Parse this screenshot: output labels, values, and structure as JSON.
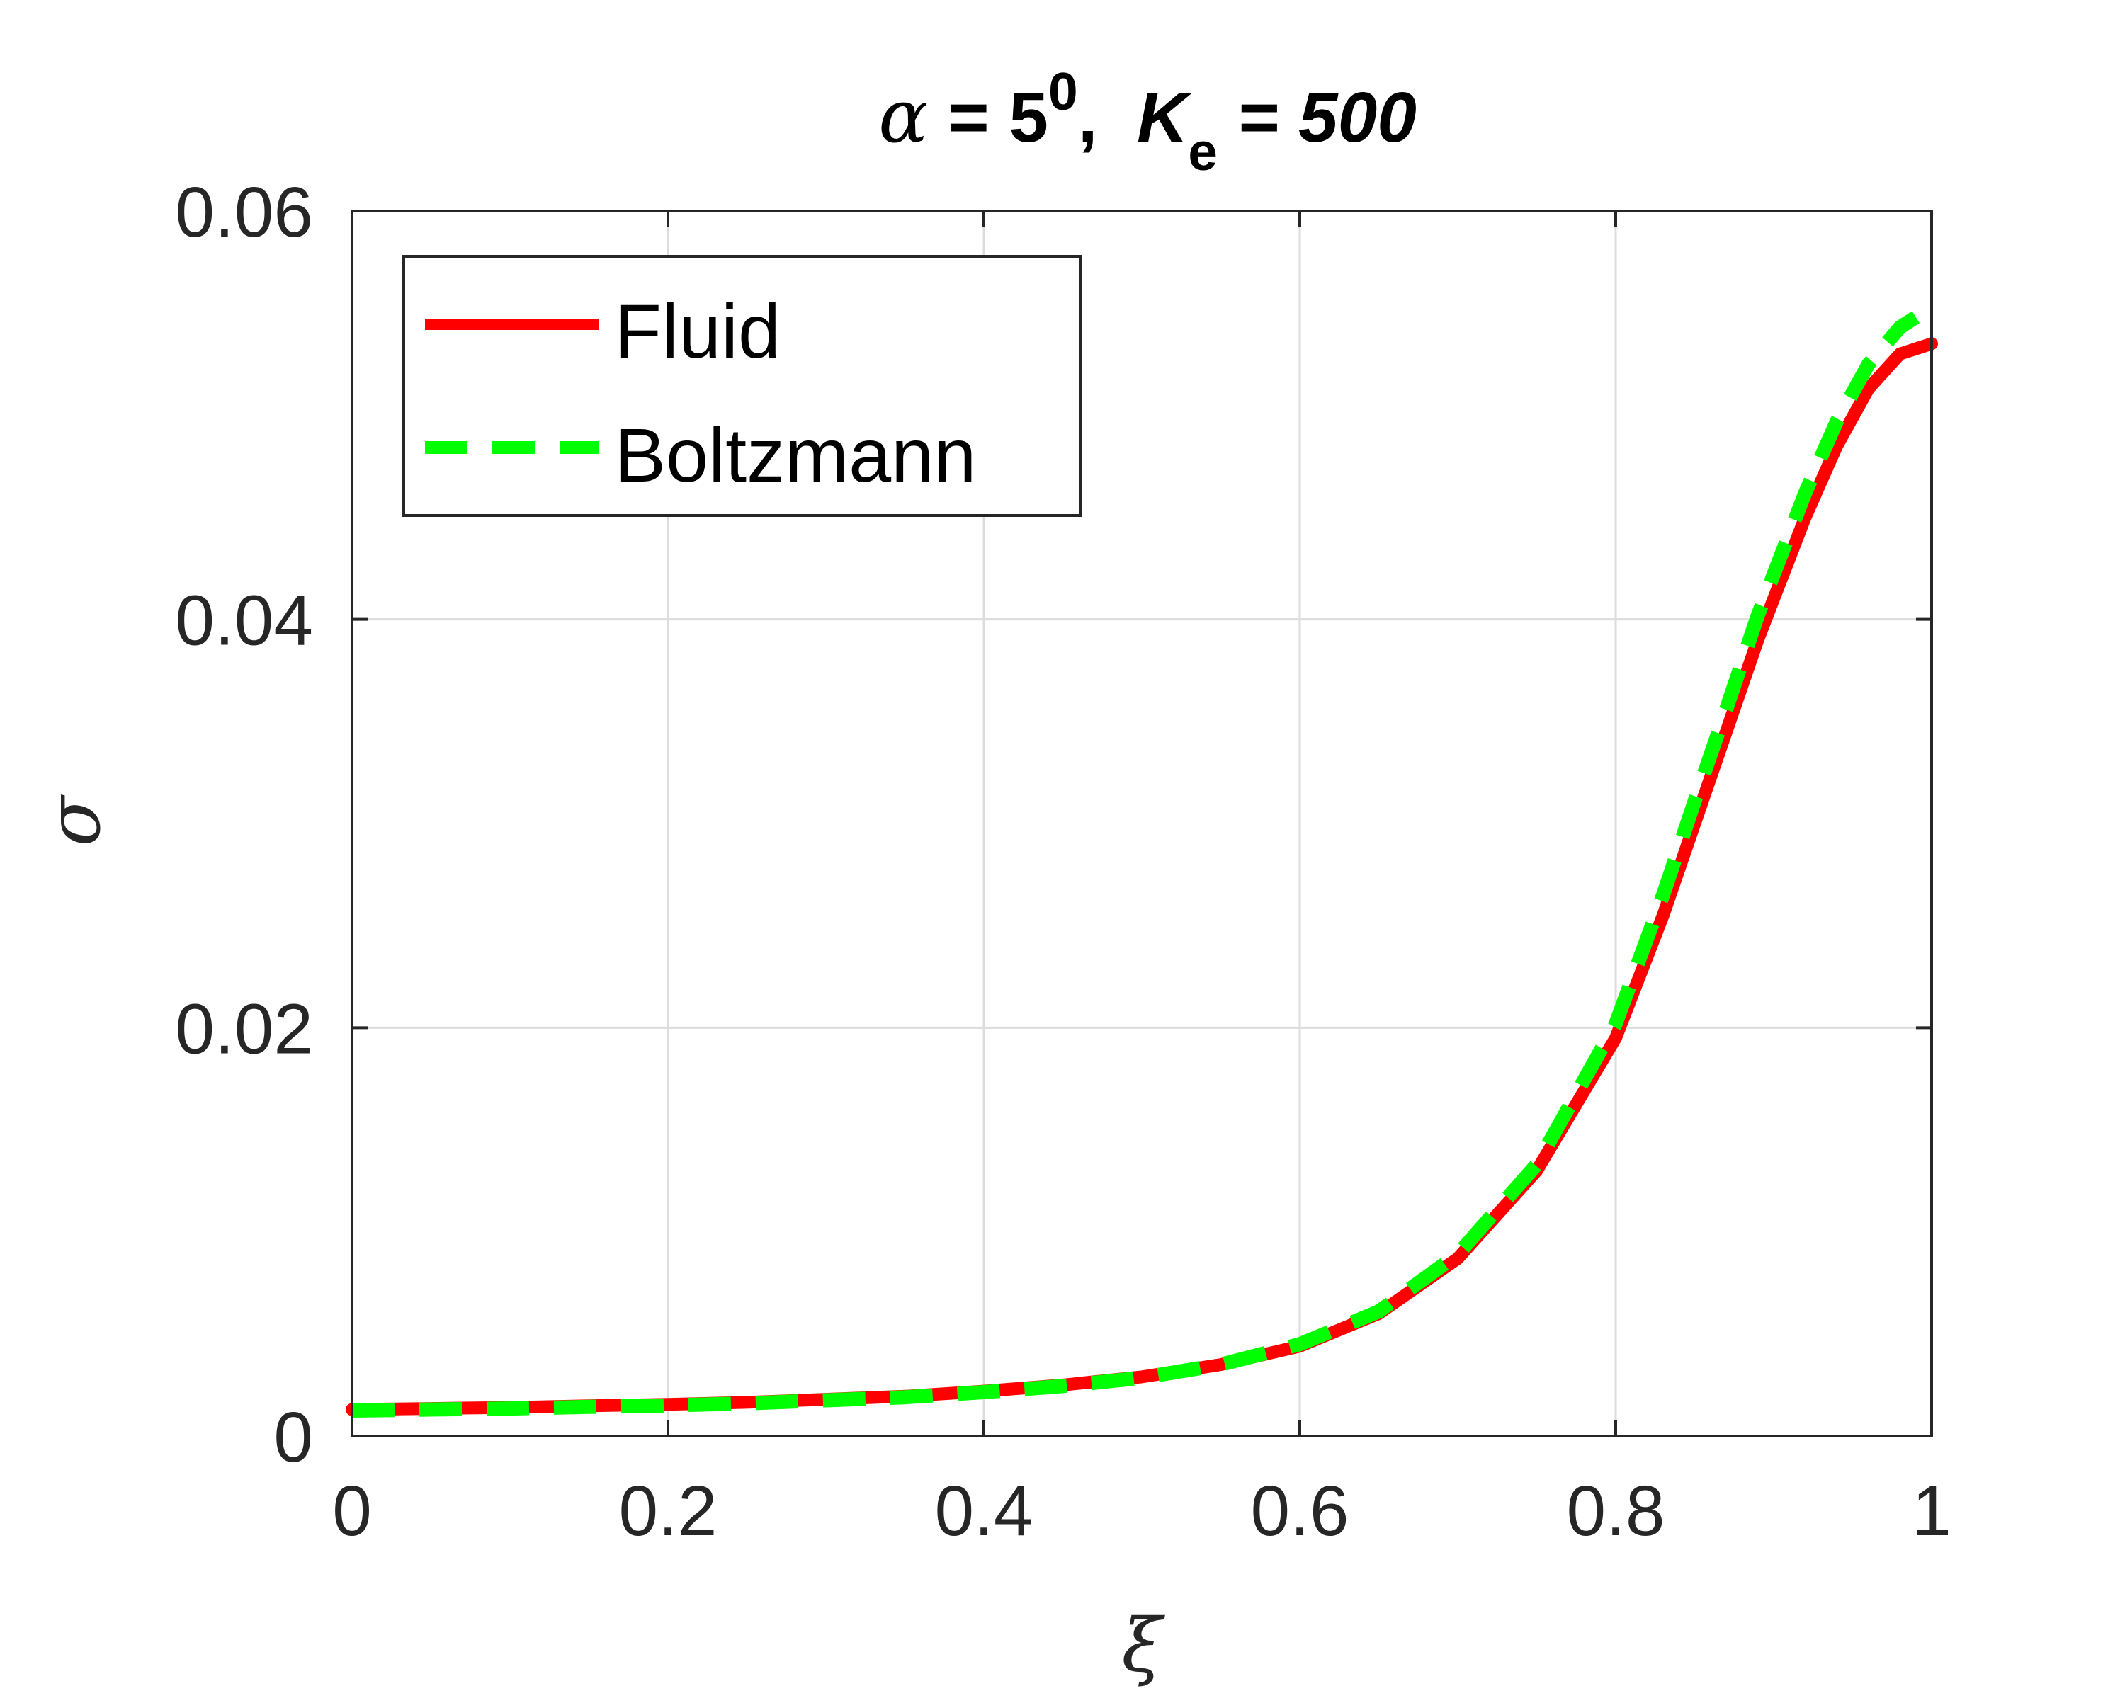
{
  "colors": {
    "fluid": "#ff0000",
    "boltzmann": "#00ff00",
    "grid": "#dcdcdc",
    "axis": "#262626"
  },
  "chart_data": {
    "type": "line",
    "title": {
      "alpha_symbol": "α",
      "alpha_rest": " = 5",
      "alpha_superscript": "0",
      "separator": ",  ",
      "k_symbol": "K",
      "k_subscript": "e",
      "k_rest": " = 500"
    },
    "xlabel": "ξ",
    "ylabel": "σ",
    "xlim": [
      0,
      1
    ],
    "ylim": [
      0,
      0.06
    ],
    "x_ticks": [
      0,
      0.2,
      0.4,
      0.6,
      0.8,
      1
    ],
    "x_tick_labels": [
      "0",
      "0.2",
      "0.4",
      "0.6",
      "0.8",
      "1"
    ],
    "y_ticks": [
      0,
      0.02,
      0.04,
      0.06
    ],
    "y_tick_labels": [
      "0",
      "0.02",
      "0.04",
      "0.06"
    ],
    "grid": true,
    "legend_position": "top-left",
    "series": [
      {
        "name": "Fluid",
        "style": "solid",
        "color": "#ff0000",
        "x": [
          0,
          0.05,
          0.1,
          0.15,
          0.2,
          0.25,
          0.3,
          0.35,
          0.4,
          0.45,
          0.5,
          0.55,
          0.6,
          0.65,
          0.7,
          0.75,
          0.8,
          0.83,
          0.85,
          0.87,
          0.89,
          0.9,
          0.92,
          0.94,
          0.96,
          0.98,
          1.0
        ],
        "y": [
          0.0013,
          0.00135,
          0.0014,
          0.00148,
          0.00155,
          0.00165,
          0.0018,
          0.00195,
          0.0022,
          0.0025,
          0.0029,
          0.0035,
          0.0044,
          0.006,
          0.0087,
          0.013,
          0.0195,
          0.0255,
          0.03,
          0.0345,
          0.039,
          0.041,
          0.045,
          0.0485,
          0.0513,
          0.053,
          0.0535
        ]
      },
      {
        "name": "Boltzmann",
        "style": "dashed",
        "color": "#00ff00",
        "x": [
          0,
          0.05,
          0.1,
          0.15,
          0.2,
          0.25,
          0.3,
          0.35,
          0.4,
          0.45,
          0.5,
          0.55,
          0.6,
          0.65,
          0.7,
          0.75,
          0.8,
          0.83,
          0.85,
          0.87,
          0.89,
          0.9,
          0.92,
          0.94,
          0.96,
          0.98,
          0.99
        ],
        "y": [
          0.00125,
          0.0013,
          0.00135,
          0.00143,
          0.0015,
          0.0016,
          0.00175,
          0.0019,
          0.00215,
          0.00245,
          0.00285,
          0.0035,
          0.0045,
          0.0061,
          0.0089,
          0.0133,
          0.0202,
          0.0265,
          0.0311,
          0.0356,
          0.0402,
          0.0422,
          0.0462,
          0.0497,
          0.0525,
          0.0543,
          0.0548
        ]
      }
    ]
  }
}
